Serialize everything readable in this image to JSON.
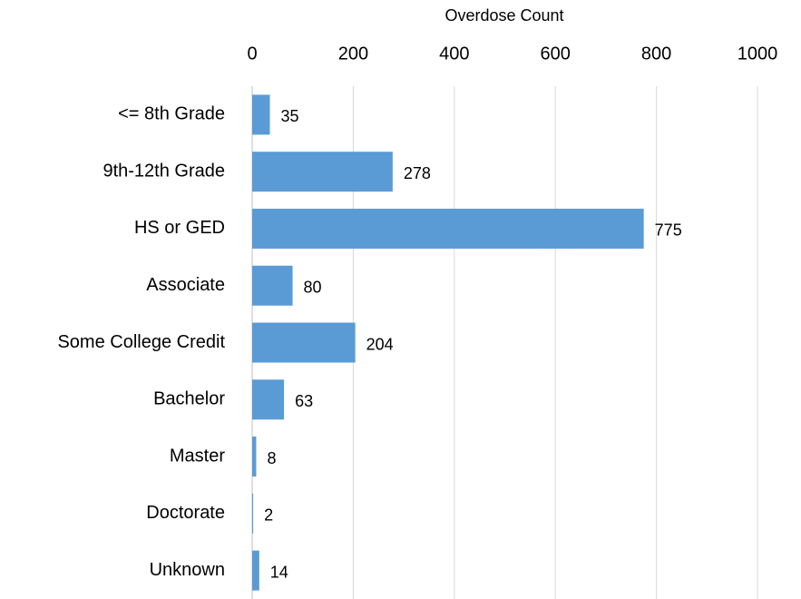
{
  "chart_data": {
    "type": "bar",
    "orientation": "horizontal",
    "x_label": "Overdose Count",
    "categories": [
      "<= 8th Grade",
      "9th-12th Grade",
      "HS or GED",
      "Associate",
      "Some College Credit",
      "Bachelor",
      "Master",
      "Doctorate",
      "Unknown"
    ],
    "values": [
      35,
      278,
      775,
      80,
      204,
      63,
      8,
      2,
      14
    ],
    "color": "#5b9bd5",
    "xlim": [
      0,
      1000
    ],
    "xticks": [
      0,
      200,
      400,
      600,
      800,
      1000
    ],
    "grid": true,
    "x_axis_position": "top"
  }
}
